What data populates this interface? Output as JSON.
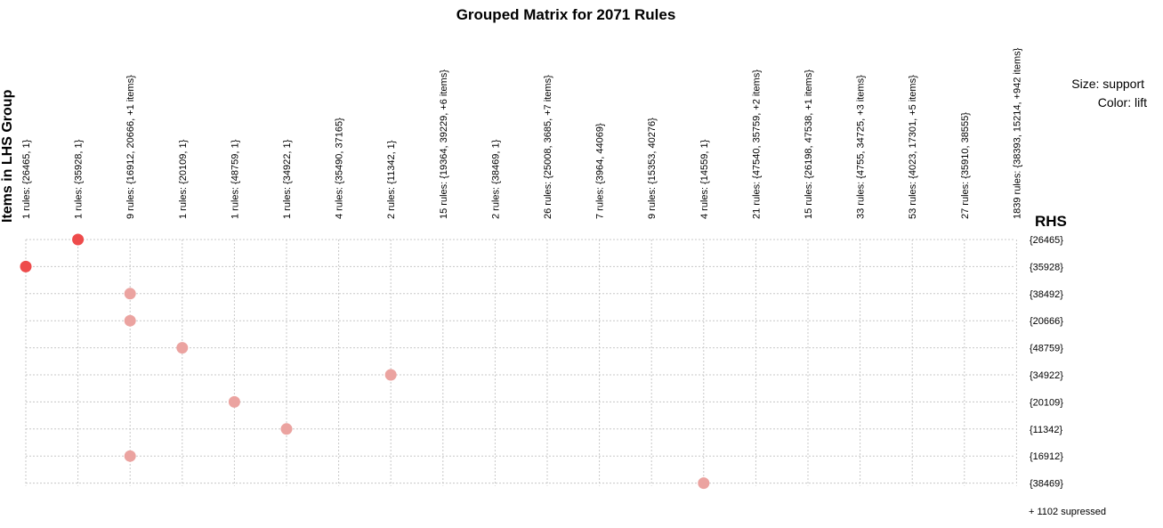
{
  "chart_data": {
    "type": "scatter",
    "title": "Grouped Matrix for 2071 Rules",
    "ylabel": "Items in LHS Group",
    "rhs_title": "RHS",
    "legend": {
      "size": "Size: support",
      "color": "Color: lift"
    },
    "footer": "+ 1102 supressed",
    "lhs_groups": [
      "1 rules: {26465, 1}",
      "1 rules: {35928, 1}",
      "9 rules: {16912, 20666, +1 items}",
      "1 rules: {20109, 1}",
      "1 rules: {48759, 1}",
      "1 rules: {34922, 1}",
      "4 rules: {35490, 37165}",
      "2 rules: {11342, 1}",
      "15 rules: {19364, 39229, +6 items}",
      "2 rules: {38469, 1}",
      "26 rules: {25008, 3685, +7 items}",
      "7 rules: {3964, 44069}",
      "9 rules: {15353, 40276}",
      "4 rules: {14559, 1}",
      "21 rules: {47540, 35759, +2 items}",
      "15 rules: {26198, 47538, +1 items}",
      "33 rules: {4755, 34725, +3 items}",
      "53 rules: {4023, 17301, +5 items}",
      "27 rules: {35910, 38555}",
      "1839 rules: {38393, 15214, +942 items}"
    ],
    "rhs_items": [
      "{26465}",
      "{35928}",
      "{38492}",
      "{20666}",
      "{48759}",
      "{34922}",
      "{20109}",
      "{11342}",
      "{16912}",
      "{38469}"
    ],
    "points": [
      {
        "lhs": 1,
        "rhs": 0,
        "color": "#ee4b4b"
      },
      {
        "lhs": 0,
        "rhs": 1,
        "color": "#ee4b4b"
      },
      {
        "lhs": 2,
        "rhs": 2,
        "color": "#eba3a0"
      },
      {
        "lhs": 2,
        "rhs": 3,
        "color": "#eba3a0"
      },
      {
        "lhs": 3,
        "rhs": 4,
        "color": "#eba3a0"
      },
      {
        "lhs": 7,
        "rhs": 5,
        "color": "#eba3a0"
      },
      {
        "lhs": 4,
        "rhs": 6,
        "color": "#eba3a0"
      },
      {
        "lhs": 5,
        "rhs": 7,
        "color": "#eba3a0"
      },
      {
        "lhs": 2,
        "rhs": 8,
        "color": "#eba3a0"
      },
      {
        "lhs": 13,
        "rhs": 9,
        "color": "#eba3a0"
      }
    ]
  }
}
